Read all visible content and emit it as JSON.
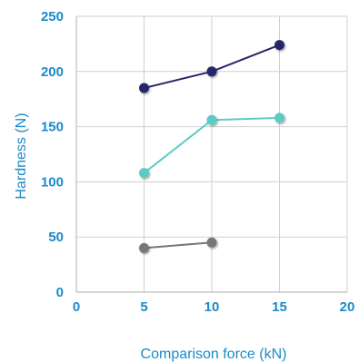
{
  "chart_data": {
    "type": "line",
    "title": "",
    "xlabel": "Comparison force (kN)",
    "ylabel": "Hardness (N)",
    "xlim": [
      0,
      20
    ],
    "ylim": [
      0,
      250
    ],
    "xticks": [
      "0",
      "5",
      "10",
      "15",
      "20"
    ],
    "yticks": [
      "0",
      "50",
      "100",
      "150",
      "200",
      "250"
    ],
    "xtick_values": [
      0,
      5,
      10,
      15,
      20
    ],
    "ytick_values": [
      0,
      50,
      100,
      150,
      200,
      250
    ],
    "grid": true,
    "legend": "none",
    "series": [
      {
        "color": "#25256b",
        "x": [
          5,
          10,
          15
        ],
        "y": [
          185,
          200,
          224
        ]
      },
      {
        "color": "#5ccbc4",
        "x": [
          5,
          10,
          15
        ],
        "y": [
          108,
          156,
          158
        ]
      },
      {
        "color": "#777777",
        "x": [
          5,
          10
        ],
        "y": [
          40,
          45
        ]
      }
    ]
  },
  "colors": {
    "axis_text": "#1a8ac9",
    "grid": "#cfcfcf",
    "axis_line": "#bdbdbd"
  }
}
